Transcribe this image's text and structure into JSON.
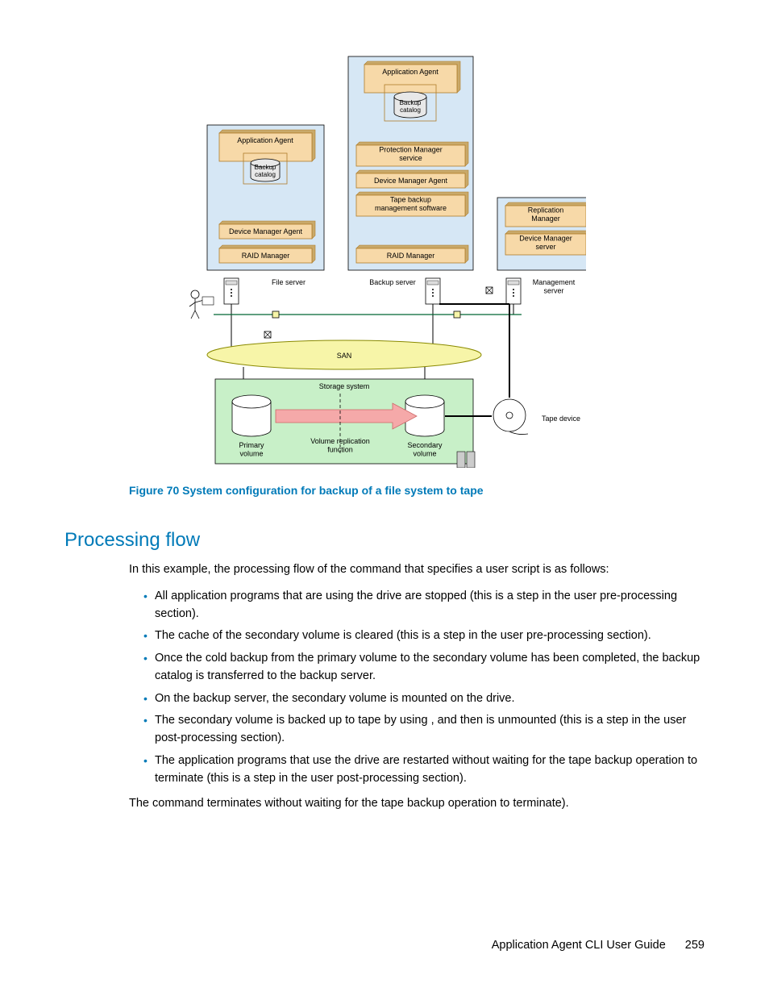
{
  "diagram": {
    "colors": {
      "panel_fill": "#d6e7f5",
      "panel_stroke": "#000000",
      "box_fill": "#f7d9a8",
      "box_stroke": "#b07d2a",
      "box_shadow": "#c9a96a",
      "san_fill": "#f7f5a8",
      "san_stroke": "#8a8a00",
      "storage_fill": "#c8f0c8",
      "storage_stroke": "#000000",
      "cyl_fill": "#e8e8e8",
      "cyl_stroke": "#000000",
      "arrow_fill": "#f5a9a9",
      "text": "#000000",
      "link_green": "#006633"
    },
    "font_family": "Arial",
    "label_fontsize": 9,
    "labels": {
      "app_agent": "Application Agent",
      "backup_catalog": "Backup\ncatalog",
      "pm_service": "Protection Manager\nservice",
      "dm_agent": "Device Manager Agent",
      "tape_sw": "Tape backup\nmanagement software",
      "raid_mgr": "RAID Manager",
      "rep_mgr": "Replication\nManager",
      "dm_server": "Device Manager\nserver",
      "file_server": "File server",
      "backup_server": "Backup server",
      "mgmt_server": "Management\nserver",
      "san": "SAN",
      "storage_system": "Storage system",
      "primary_vol": "Primary\nvolume",
      "secondary_vol": "Secondary\nvolume",
      "vol_repl": "Volume replication\nfunction",
      "tape_device": "Tape device"
    }
  },
  "caption": "Figure 70 System configuration for backup of a file system to tape",
  "heading": "Processing flow",
  "intro_a": "In this example, the processing flow of the ",
  "intro_b": " command that specifies a user script is as follows:",
  "bullets": [
    "All application programs that are using the    drive are stopped (this is a step in the user pre-processing section).",
    "The cache of the secondary volume is cleared (this is a step in the user pre-processing section).",
    "Once the cold backup from the primary volume to the secondary volume has been completed, the backup catalog is transferred to the backup server.",
    "On the backup server, the secondary volume is mounted on the    drive.",
    "The secondary volume is backed up to tape by using                , and then is unmounted (this is a step in the user post-processing section).",
    "The application programs that use the    drive are restarted without waiting for the tape backup operation to terminate (this is a step in the user post-processing section)."
  ],
  "outro_a": "The ",
  "outro_b": " command terminates without waiting for the tape backup operation to terminate).",
  "footer_text": "Application Agent CLI User Guide",
  "page_number": "259"
}
